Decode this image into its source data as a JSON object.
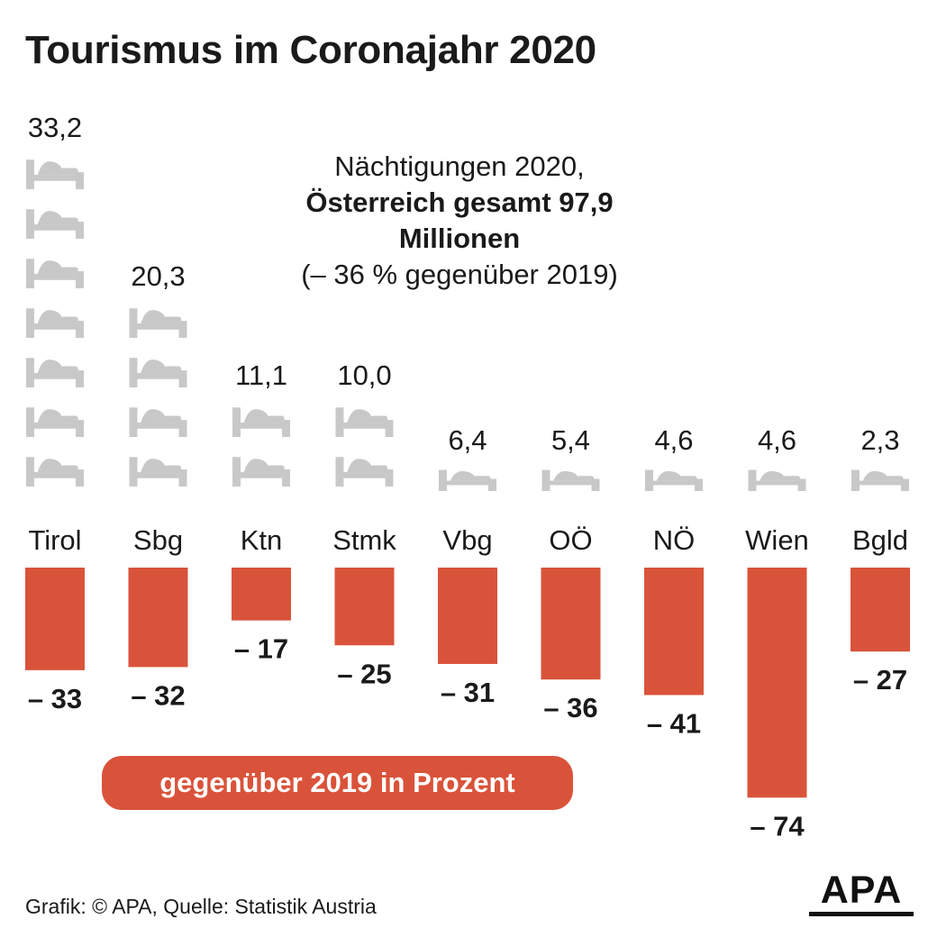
{
  "title": "Tourismus im Coronajahr 2020",
  "info": {
    "line1": "Nächtigungen 2020,",
    "line2": "Österreich gesamt 97,9 Millionen",
    "line3": "(– 36 % gegenüber 2019)"
  },
  "legend_pill": "gegenüber 2019 in Prozent",
  "footer": "Grafik: © APA, Quelle: Statistik Austria",
  "logo": "APA",
  "colors": {
    "bar": "#d9533a",
    "bed": "#c8c8c8",
    "text": "#1a1a1a"
  },
  "chart_data": {
    "type": "bar",
    "title": "Tourismus im Coronajahr 2020",
    "categories": [
      "Tirol",
      "Sbg",
      "Ktn",
      "Stmk",
      "Vbg",
      "OÖ",
      "NÖ",
      "Wien",
      "Bgld"
    ],
    "series": [
      {
        "name": "Nächtigungen 2020 (Mio.)",
        "values": [
          33.2,
          20.3,
          11.1,
          10.0,
          6.4,
          5.4,
          4.6,
          4.6,
          2.3
        ],
        "labels": [
          "33,2",
          "20,3",
          "11,1",
          "10,0",
          "6,4",
          "5,4",
          "4,6",
          "4,6",
          "2,3"
        ],
        "bed_icons": [
          7,
          4,
          2,
          2,
          1,
          1,
          1,
          1,
          1
        ]
      },
      {
        "name": "gegenüber 2019 in Prozent",
        "values": [
          -33,
          -32,
          -17,
          -25,
          -31,
          -36,
          -41,
          -74,
          -27
        ],
        "labels": [
          "– 33",
          "– 32",
          "– 17",
          "– 25",
          "– 31",
          "– 36",
          "– 41",
          "– 74",
          "– 27"
        ]
      }
    ]
  }
}
